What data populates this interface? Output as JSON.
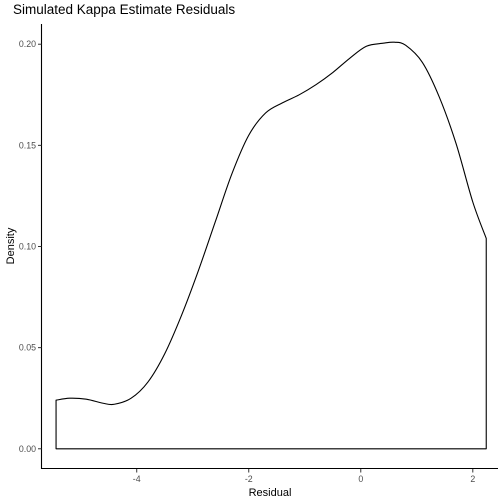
{
  "chart_data": {
    "type": "area",
    "title": "Simulated Kappa Estimate Residuals",
    "xlabel": "Residual",
    "ylabel": "Density",
    "xlim": [
      -5.7,
      2.45
    ],
    "ylim": [
      -0.01,
      0.21
    ],
    "x_ticks": [
      {
        "value": -4,
        "label": "-4"
      },
      {
        "value": -2,
        "label": "-2"
      },
      {
        "value": 0,
        "label": "0"
      },
      {
        "value": 2,
        "label": "2"
      }
    ],
    "y_ticks": [
      {
        "value": 0.0,
        "label": "0.00"
      },
      {
        "value": 0.05,
        "label": "0.05"
      },
      {
        "value": 0.1,
        "label": "0.10"
      },
      {
        "value": 0.15,
        "label": "0.15"
      },
      {
        "value": 0.2,
        "label": "0.20"
      }
    ],
    "grid": false,
    "series": [
      {
        "x": [
          -5.44,
          -5.2,
          -4.9,
          -4.6,
          -4.4,
          -4.1,
          -3.8,
          -3.5,
          -3.2,
          -2.9,
          -2.6,
          -2.3,
          -2.0,
          -1.7,
          -1.4,
          -1.1,
          -0.8,
          -0.5,
          -0.2,
          0.1,
          0.4,
          0.6,
          0.8,
          1.1,
          1.4,
          1.7,
          2.0,
          2.24
        ],
        "y": [
          0.024,
          0.025,
          0.0245,
          0.0225,
          0.022,
          0.025,
          0.033,
          0.047,
          0.066,
          0.088,
          0.112,
          0.136,
          0.155,
          0.166,
          0.171,
          0.175,
          0.18,
          0.186,
          0.193,
          0.199,
          0.2005,
          0.201,
          0.1995,
          0.191,
          0.174,
          0.151,
          0.122,
          0.104
        ]
      }
    ]
  }
}
